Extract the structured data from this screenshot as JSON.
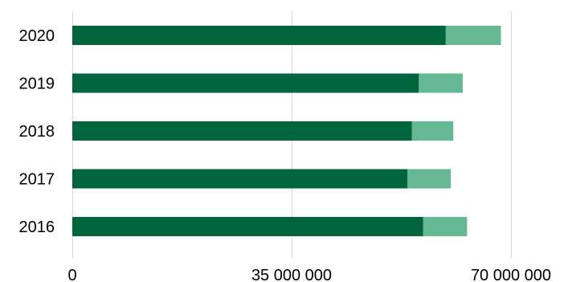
{
  "chart_data": {
    "type": "bar",
    "orientation": "horizontal",
    "stacked": true,
    "categories": [
      "2020",
      "2019",
      "2018",
      "2017",
      "2016"
    ],
    "series": [
      {
        "values": [
          59600000,
          55300000,
          54200000,
          53500000,
          56000000
        ],
        "color": "#00643c"
      },
      {
        "values": [
          8800000,
          7000000,
          6600000,
          6900000,
          7000000
        ],
        "color": "#66b894"
      }
    ],
    "xlim": [
      0,
      70000000
    ],
    "xticks": [
      {
        "value": 0,
        "label": "0"
      },
      {
        "value": 35000000,
        "label": "35 000 000"
      },
      {
        "value": 70000000,
        "label": "70 000 000"
      }
    ],
    "grid": true,
    "legend": "none"
  }
}
